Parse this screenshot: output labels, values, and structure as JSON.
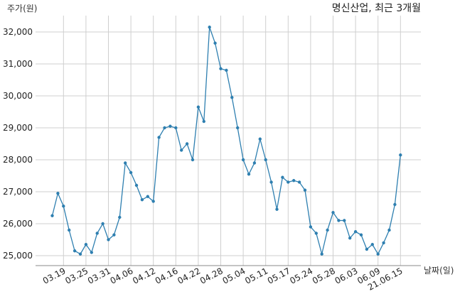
{
  "chart_data": {
    "type": "line",
    "title": "명신산업, 최근 3개월",
    "ylabel": "주가(원)",
    "xlabel": "날짜(일)",
    "ylim": [
      24700,
      32600
    ],
    "yticks": [
      25000,
      26000,
      27000,
      28000,
      29000,
      30000,
      31000,
      32000
    ],
    "ytick_labels": [
      "25,000",
      "26,000",
      "27,000",
      "28,000",
      "29,000",
      "30,000",
      "31,000",
      "32,000"
    ],
    "xtick_labels": [
      "03.19",
      "03.25",
      "03.31",
      "04.06",
      "04.12",
      "04.16",
      "04.22",
      "04.28",
      "05.04",
      "05.11",
      "05.17",
      "05.24",
      "05.28",
      "06.03",
      "06.09",
      "21.06.15"
    ],
    "xtick_index": [
      2,
      6,
      10,
      14,
      18,
      22,
      26,
      30,
      34,
      38,
      42,
      46,
      50,
      54,
      58,
      62
    ],
    "grid": true,
    "color": "#2e7fb0",
    "series": [
      {
        "values": [
          26250,
          26950,
          26550,
          25800,
          25150,
          25050,
          25350,
          25100,
          25700,
          26000,
          25500,
          25650,
          26200,
          27900,
          27600,
          27200,
          26750,
          26850,
          26700,
          28700,
          29000,
          29050,
          29000,
          28300,
          28500,
          28000,
          29650,
          29200,
          32150,
          31650,
          30850,
          30800,
          29950,
          29000,
          28000,
          27550,
          27900,
          28650,
          28000,
          27300,
          26450,
          27450,
          27300,
          27350,
          27300,
          27050,
          25900,
          25700,
          25050,
          25800,
          26350,
          26100,
          26100,
          25550,
          25750,
          25650,
          25200,
          25350,
          25050,
          25400,
          25800,
          26600,
          28150
        ]
      }
    ]
  }
}
